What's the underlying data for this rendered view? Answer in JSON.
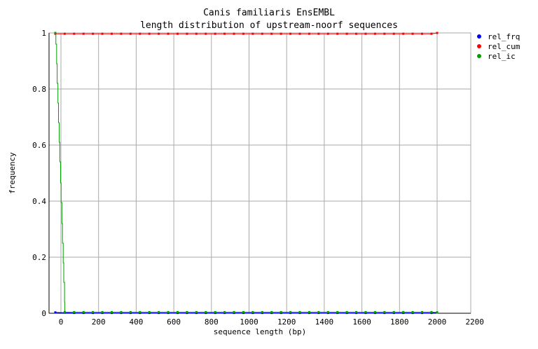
{
  "chart_data": {
    "type": "line",
    "title": "Canis familiaris EnsEMBL",
    "subtitle": "length distribution of upstream-noorf sequences",
    "xlabel": "sequence length (bp)",
    "ylabel": "frequency",
    "xlim": [
      -63,
      2200
    ],
    "ylim": [
      0,
      1
    ],
    "xticks": [
      0,
      200,
      400,
      600,
      800,
      1000,
      1200,
      1400,
      1600,
      1800,
      2000,
      2200
    ],
    "yticks": [
      0,
      0.2,
      0.4,
      0.6,
      0.8,
      1
    ],
    "ytick_labels": [
      "0",
      "0.2",
      "0.4",
      "0.6",
      "0.8",
      "1"
    ],
    "grid": true,
    "legend_position": "top-right",
    "series": [
      {
        "name": "rel_frq",
        "color": "#0000ff",
        "x": [
          -30,
          20,
          70,
          120,
          170,
          220,
          270,
          320,
          370,
          420,
          470,
          520,
          570,
          620,
          670,
          720,
          770,
          820,
          870,
          920,
          970,
          1020,
          1070,
          1120,
          1170,
          1220,
          1270,
          1320,
          1370,
          1420,
          1470,
          1520,
          1570,
          1620,
          1670,
          1720,
          1770,
          1820,
          1870,
          1920,
          1970,
          2000
        ],
        "y": [
          0.003,
          0.002,
          0.001,
          0.001,
          0.001,
          0.001,
          0.001,
          0.001,
          0.001,
          0.001,
          0.001,
          0.001,
          0.001,
          0.001,
          0.001,
          0.001,
          0.001,
          0.001,
          0.001,
          0.001,
          0.001,
          0.001,
          0.001,
          0.001,
          0.001,
          0.001,
          0.001,
          0.001,
          0.001,
          0.001,
          0.001,
          0.001,
          0.001,
          0.001,
          0.001,
          0.001,
          0.001,
          0.001,
          0.001,
          0.001,
          0.001,
          0.003
        ]
      },
      {
        "name": "rel_cum",
        "color": "#ff0000",
        "x": [
          -30,
          20,
          70,
          120,
          170,
          220,
          270,
          320,
          370,
          420,
          470,
          520,
          570,
          620,
          670,
          720,
          770,
          820,
          870,
          920,
          970,
          1020,
          1070,
          1120,
          1170,
          1220,
          1270,
          1320,
          1370,
          1420,
          1470,
          1520,
          1570,
          1620,
          1670,
          1720,
          1770,
          1820,
          1870,
          1920,
          1970,
          2000
        ],
        "y": [
          0.997,
          0.997,
          0.997,
          0.997,
          0.997,
          0.997,
          0.997,
          0.997,
          0.997,
          0.997,
          0.997,
          0.997,
          0.997,
          0.997,
          0.997,
          0.997,
          0.997,
          0.997,
          0.997,
          0.997,
          0.997,
          0.997,
          0.997,
          0.997,
          0.997,
          0.997,
          0.997,
          0.997,
          0.997,
          0.997,
          0.997,
          0.997,
          0.997,
          0.997,
          0.997,
          0.997,
          0.997,
          0.997,
          0.997,
          0.997,
          0.997,
          1
        ]
      },
      {
        "name": "rel_ic",
        "color": "#00a000",
        "x": [
          -30,
          -27,
          -23,
          -20,
          -16,
          -13,
          -9,
          -6,
          -2,
          1,
          5,
          8,
          12,
          15,
          19,
          20,
          70,
          120,
          170,
          220,
          270,
          320,
          370,
          420,
          470,
          520,
          570,
          620,
          670,
          720,
          770,
          820,
          870,
          920,
          970,
          1020,
          1070,
          1120,
          1170,
          1220,
          1270,
          1320,
          1370,
          1420,
          1470,
          1520,
          1570,
          1620,
          1670,
          1720,
          1770,
          1820,
          1870,
          1920,
          1970,
          2000
        ],
        "y": [
          1,
          0.96,
          0.89,
          0.82,
          0.75,
          0.68,
          0.61,
          0.54,
          0.465,
          0.395,
          0.32,
          0.25,
          0.18,
          0.11,
          0.04,
          0.004,
          0.004,
          0.004,
          0.004,
          0.004,
          0.004,
          0.004,
          0.004,
          0.004,
          0.004,
          0.004,
          0.004,
          0.004,
          0.004,
          0.004,
          0.004,
          0.004,
          0.004,
          0.004,
          0.004,
          0.004,
          0.004,
          0.004,
          0.004,
          0.004,
          0.004,
          0.004,
          0.004,
          0.004,
          0.004,
          0.004,
          0.004,
          0.004,
          0.004,
          0.004,
          0.004,
          0.004,
          0.004,
          0.004,
          0.004,
          0.003
        ],
        "marker_every_from": 15
      }
    ]
  }
}
